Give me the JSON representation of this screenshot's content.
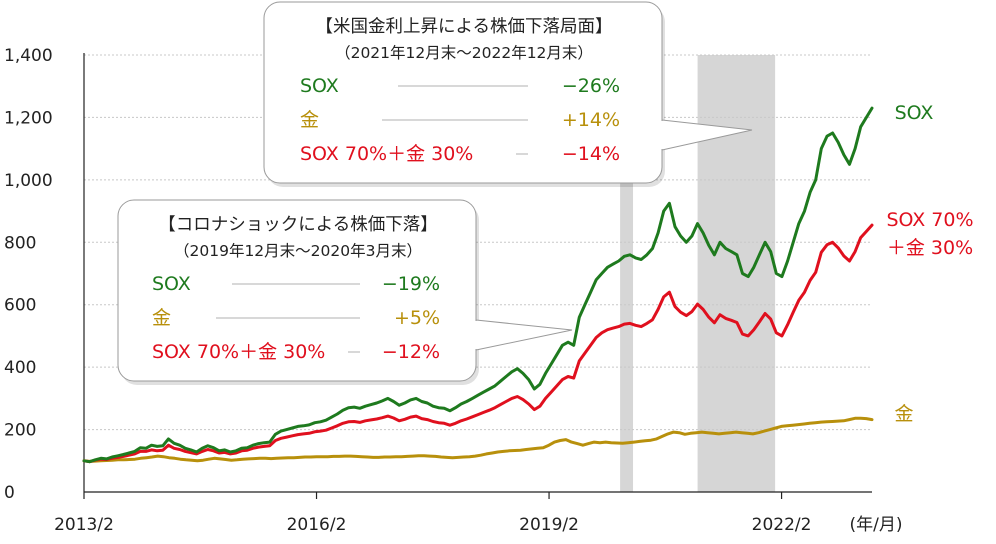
{
  "colors": {
    "sox": "#1e7a1e",
    "gold": "#b8900c",
    "mix": "#e0101e",
    "shade": "#d6d6d6",
    "axis": "#222222",
    "grid": "#c8c8c8"
  },
  "chart_data": {
    "type": "line",
    "xlabel": "",
    "ylabel": "",
    "xunit": "(年/月)",
    "ylim": [
      0,
      1400
    ],
    "yticks": [
      "0",
      "200",
      "400",
      "600",
      "800",
      "1,000",
      "1,200",
      "1,400"
    ],
    "yticks_values": [
      0,
      200,
      400,
      600,
      800,
      1000,
      1200,
      1400
    ],
    "xticks": [
      "2013/2",
      "2016/2",
      "2019/2",
      "2022/2"
    ],
    "x_start": "2013/2",
    "x_end": "2023/4",
    "shaded_periods": [
      {
        "from": "2020/1",
        "to": "2020/3"
      },
      {
        "from": "2021/1",
        "to": "2022/1"
      }
    ],
    "series": [
      {
        "name": "SOX",
        "label_lines": [
          "SOX"
        ],
        "color_key": "sox",
        "values": [
          100,
          97,
          103,
          108,
          106,
          112,
          116,
          120,
          125,
          130,
          142,
          140,
          150,
          146,
          148,
          170,
          156,
          150,
          140,
          135,
          128,
          140,
          148,
          142,
          132,
          135,
          128,
          132,
          140,
          142,
          150,
          155,
          158,
          160,
          185,
          195,
          200,
          205,
          210,
          212,
          215,
          222,
          225,
          230,
          240,
          250,
          262,
          270,
          272,
          268,
          275,
          280,
          285,
          292,
          300,
          290,
          278,
          285,
          295,
          300,
          290,
          285,
          275,
          270,
          268,
          260,
          270,
          282,
          290,
          300,
          310,
          320,
          330,
          340,
          355,
          370,
          385,
          395,
          380,
          360,
          330,
          345,
          380,
          410,
          440,
          470,
          480,
          470,
          560,
          600,
          640,
          680,
          700,
          720,
          730,
          740,
          755,
          760,
          750,
          745,
          760,
          780,
          830,
          900,
          925,
          850,
          820,
          800,
          820,
          860,
          830,
          790,
          760,
          800,
          780,
          770,
          760,
          700,
          690,
          720,
          760,
          800,
          770,
          700,
          690,
          740,
          800,
          860,
          900,
          960,
          1000,
          1100,
          1140,
          1150,
          1120,
          1080,
          1050,
          1100,
          1170,
          1200,
          1230
        ]
      },
      {
        "name": "金",
        "label_lines": [
          "金"
        ],
        "color_key": "gold",
        "values": [
          100,
          98,
          99,
          100,
          101,
          102,
          103,
          103,
          104,
          105,
          108,
          110,
          112,
          115,
          113,
          110,
          108,
          105,
          103,
          102,
          100,
          102,
          105,
          108,
          106,
          104,
          102,
          103,
          105,
          106,
          107,
          108,
          108,
          107,
          108,
          109,
          110,
          110,
          111,
          112,
          112,
          113,
          113,
          113,
          114,
          114,
          115,
          115,
          114,
          113,
          112,
          111,
          111,
          112,
          112,
          113,
          113,
          114,
          115,
          116,
          116,
          115,
          114,
          112,
          111,
          110,
          111,
          112,
          113,
          115,
          118,
          122,
          125,
          128,
          130,
          132,
          133,
          134,
          136,
          138,
          140,
          142,
          150,
          160,
          165,
          168,
          160,
          155,
          150,
          155,
          160,
          158,
          160,
          158,
          157,
          156,
          158,
          160,
          162,
          164,
          166,
          170,
          178,
          186,
          192,
          190,
          185,
          188,
          190,
          192,
          190,
          188,
          186,
          188,
          190,
          192,
          190,
          188,
          186,
          190,
          195,
          200,
          205,
          210,
          212,
          214,
          216,
          218,
          220,
          222,
          224,
          225,
          226,
          227,
          228,
          232,
          236,
          236,
          235,
          232
        ]
      },
      {
        "name": "SOX 70%+金 30%",
        "label_lines": [
          "SOX 70%",
          "＋金 30%"
        ],
        "color_key": "mix",
        "values": [
          100,
          97,
          102,
          105,
          104,
          108,
          111,
          114,
          118,
          122,
          130,
          130,
          135,
          132,
          134,
          150,
          140,
          136,
          130,
          126,
          122,
          130,
          136,
          132,
          125,
          127,
          122,
          125,
          132,
          134,
          140,
          144,
          146,
          148,
          165,
          172,
          176,
          180,
          184,
          186,
          188,
          193,
          195,
          198,
          205,
          212,
          220,
          225,
          226,
          223,
          228,
          231,
          234,
          238,
          243,
          237,
          228,
          233,
          240,
          243,
          235,
          232,
          226,
          222,
          220,
          214,
          220,
          228,
          234,
          241,
          248,
          255,
          262,
          270,
          280,
          290,
          300,
          306,
          296,
          282,
          264,
          275,
          300,
          320,
          340,
          360,
          370,
          365,
          420,
          445,
          470,
          495,
          510,
          520,
          525,
          530,
          538,
          540,
          534,
          530,
          540,
          552,
          585,
          625,
          640,
          594,
          576,
          565,
          578,
          602,
          585,
          560,
          542,
          568,
          556,
          550,
          543,
          506,
          500,
          520,
          545,
          572,
          554,
          510,
          500,
          536,
          576,
          614,
          640,
          678,
          704,
          768,
          792,
          800,
          782,
          756,
          740,
          770,
          815,
          835,
          855
        ]
      }
    ]
  },
  "annotations": [
    {
      "title": "【米国金利上昇による株価下落局面】",
      "subtitle": "（2021年12月末～2022年12月末）",
      "rows": [
        {
          "label": "SOX",
          "value": "−26%",
          "color_key": "sox"
        },
        {
          "label": "金",
          "value": "+14%",
          "color_key": "gold"
        },
        {
          "label": "SOX 70%＋金 30%",
          "value": "−14%",
          "color_key": "mix"
        }
      ]
    },
    {
      "title": "【コロナショックによる株価下落】",
      "subtitle": "（2019年12月末～2020年3月末）",
      "rows": [
        {
          "label": "SOX",
          "value": "−19%",
          "color_key": "sox"
        },
        {
          "label": "金",
          "value": "+5%",
          "color_key": "gold"
        },
        {
          "label": "SOX 70%＋金 30%",
          "value": "−12%",
          "color_key": "mix"
        }
      ]
    }
  ]
}
